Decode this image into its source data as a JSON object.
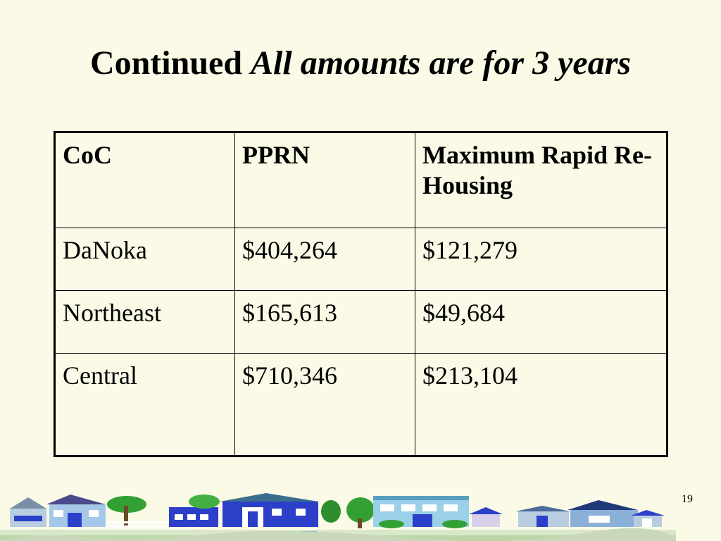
{
  "slide": {
    "title_regular": "Continued",
    "title_italic": "All amounts are for 3 years",
    "page_number": "19"
  },
  "table": {
    "headers": [
      "CoC",
      "PPRN",
      "Maximum Rapid Re-Housing"
    ],
    "rows": [
      [
        "DaNoka",
        "$404,264",
        "$121,279"
      ],
      [
        "Northeast",
        "$165,613",
        "$49,684"
      ],
      [
        "Central",
        "$710,346",
        "$213,104"
      ]
    ]
  },
  "decoration": {
    "name": "town-clipart",
    "sky_colors": [
      "#fafae6"
    ],
    "house_blue": "#2b3fc9",
    "tree_green": "#33a033"
  }
}
